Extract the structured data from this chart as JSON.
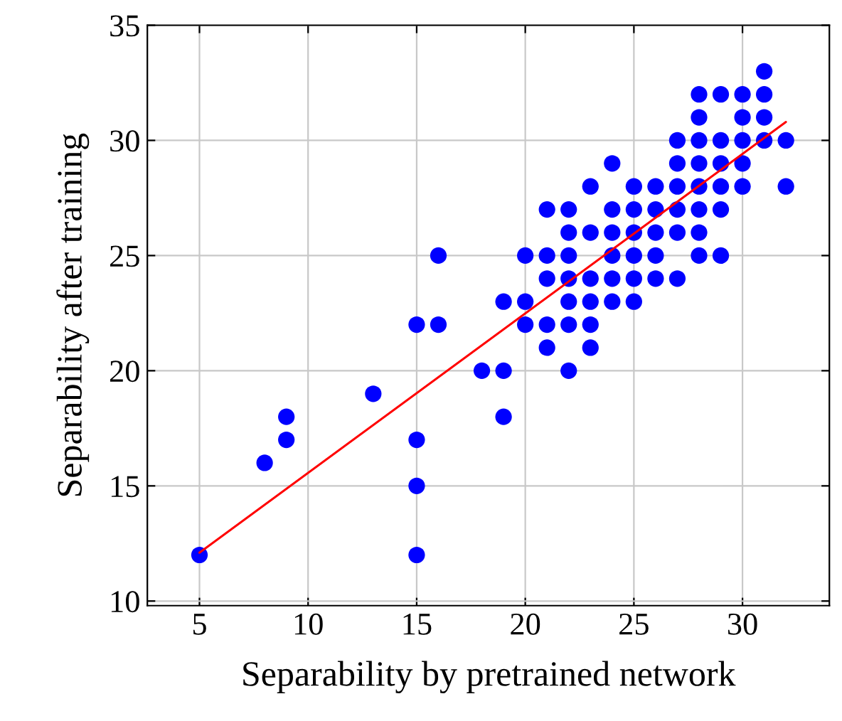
{
  "chart_data": {
    "type": "scatter",
    "xlabel": "Separability by pretrained network",
    "ylabel": "Separability after training",
    "xlim": [
      2.6,
      34
    ],
    "ylim": [
      9.8,
      35
    ],
    "xticks": [
      5,
      10,
      15,
      20,
      25,
      30
    ],
    "yticks": [
      10,
      15,
      20,
      25,
      30,
      35
    ],
    "grid": true,
    "legend": false,
    "series": [
      {
        "color": "#0000ff",
        "marker": "circle",
        "x": [
          5,
          8,
          9,
          9,
          13,
          15,
          15,
          15,
          15,
          16,
          16,
          18,
          19,
          19,
          19,
          20,
          20,
          20,
          21,
          21,
          21,
          21,
          21,
          22,
          22,
          22,
          22,
          22,
          22,
          22,
          23,
          23,
          23,
          23,
          23,
          23,
          24,
          24,
          24,
          24,
          24,
          24,
          25,
          25,
          25,
          25,
          25,
          25,
          26,
          26,
          26,
          26,
          26,
          27,
          27,
          27,
          27,
          27,
          27,
          28,
          28,
          28,
          28,
          28,
          28,
          28,
          28,
          29,
          29,
          29,
          29,
          29,
          29,
          30,
          30,
          30,
          30,
          30,
          31,
          31,
          31,
          31,
          32,
          32
        ],
        "values": [
          12,
          16,
          17,
          18,
          19,
          12,
          15,
          17,
          22,
          22,
          25,
          20,
          18,
          20,
          23,
          22,
          23,
          25,
          21,
          22,
          24,
          25,
          27,
          20,
          22,
          23,
          24,
          25,
          26,
          27,
          21,
          22,
          23,
          24,
          26,
          28,
          23,
          24,
          25,
          26,
          27,
          29,
          23,
          24,
          25,
          26,
          27,
          28,
          24,
          25,
          26,
          27,
          28,
          24,
          26,
          27,
          28,
          29,
          30,
          25,
          26,
          27,
          28,
          29,
          30,
          31,
          32,
          25,
          27,
          28,
          29,
          30,
          32,
          28,
          29,
          30,
          31,
          32,
          30,
          31,
          32,
          33,
          28,
          30
        ]
      },
      {
        "type": "line",
        "color": "#ff0000",
        "marker": "none",
        "line_style": "solid",
        "x": [
          5,
          32
        ],
        "values": [
          12.1,
          30.8
        ]
      }
    ]
  }
}
